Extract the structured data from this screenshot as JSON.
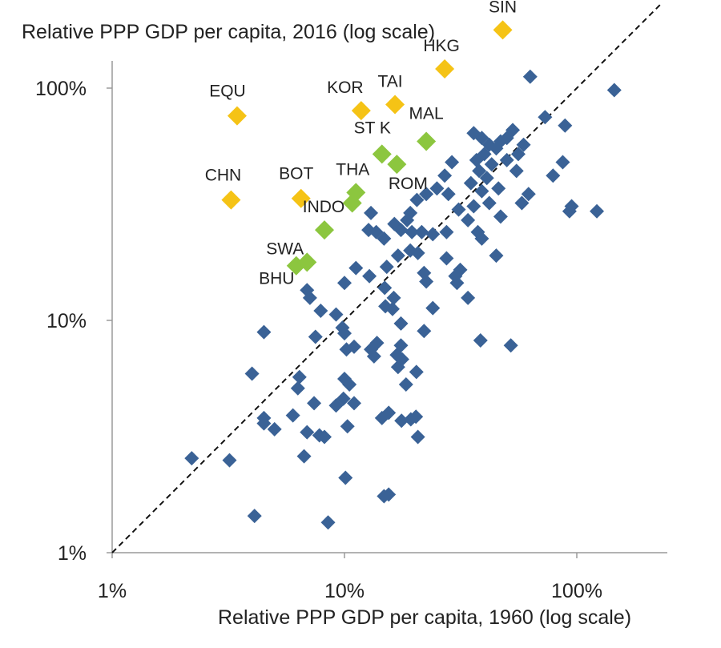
{
  "chart_data": {
    "type": "scatter",
    "ylabel": "Relative PPP GDP per capita, 2016 (log scale)",
    "xlabel": "Relative PPP GDP per capita, 1960 (log scale)",
    "x_scale": "log",
    "y_scale": "log",
    "xlim": [
      1,
      230
    ],
    "ylim": [
      1,
      230
    ],
    "x_ticks": [
      {
        "value": 1,
        "label": "1%"
      },
      {
        "value": 10,
        "label": "10%"
      },
      {
        "value": 100,
        "label": "100%"
      }
    ],
    "y_ticks": [
      {
        "value": 1,
        "label": "1%"
      },
      {
        "value": 10,
        "label": "10%"
      },
      {
        "value": 100,
        "label": "100%"
      }
    ],
    "grid": false,
    "reference_line": {
      "style": "dashed",
      "from": [
        1,
        1
      ],
      "to": [
        230,
        230
      ]
    },
    "colors": {
      "blue": "#3a6296",
      "yellow": "#f5c316",
      "green": "#8cc63f"
    },
    "series": [
      {
        "color": "yellow",
        "points": [
          {
            "label": "SIN",
            "x": 48,
            "y": 178
          },
          {
            "label": "HKG",
            "x": 27,
            "y": 121
          },
          {
            "label": "TAI",
            "x": 16.5,
            "y": 85
          },
          {
            "label": "KOR",
            "x": 11.8,
            "y": 80
          },
          {
            "label": "EQU",
            "x": 3.45,
            "y": 76
          },
          {
            "label": "CHN",
            "x": 3.25,
            "y": 33
          },
          {
            "label": "BOT",
            "x": 6.5,
            "y": 33.5
          }
        ]
      },
      {
        "color": "green",
        "points": [
          {
            "label": "MAL",
            "x": 22.5,
            "y": 59
          },
          {
            "label": "ST K",
            "x": 14.5,
            "y": 52
          },
          {
            "label": "ROM",
            "x": 16.8,
            "y": 47
          },
          {
            "label": "THA",
            "x": 11.2,
            "y": 35.5
          },
          {
            "label": "",
            "x": 10.8,
            "y": 32
          },
          {
            "label": "INDO",
            "x": 8.2,
            "y": 24.5
          },
          {
            "label": "SWA",
            "x": 6.2,
            "y": 17.2
          },
          {
            "label": "BHU",
            "x": 6.9,
            "y": 17.8
          }
        ]
      },
      {
        "color": "blue",
        "points": [
          {
            "x": 145,
            "y": 98
          },
          {
            "x": 63,
            "y": 112
          },
          {
            "x": 73,
            "y": 75
          },
          {
            "x": 89,
            "y": 69
          },
          {
            "x": 87,
            "y": 48
          },
          {
            "x": 79,
            "y": 42
          },
          {
            "x": 59,
            "y": 57
          },
          {
            "x": 56,
            "y": 52
          },
          {
            "x": 53,
            "y": 66
          },
          {
            "x": 50,
            "y": 61
          },
          {
            "x": 47,
            "y": 59
          },
          {
            "x": 45,
            "y": 55
          },
          {
            "x": 42,
            "y": 57
          },
          {
            "x": 40,
            "y": 52
          },
          {
            "x": 39,
            "y": 61
          },
          {
            "x": 36,
            "y": 64
          },
          {
            "x": 37,
            "y": 49
          },
          {
            "x": 43,
            "y": 47
          },
          {
            "x": 50,
            "y": 49
          },
          {
            "x": 55,
            "y": 44
          },
          {
            "x": 38,
            "y": 44
          },
          {
            "x": 41,
            "y": 41
          },
          {
            "x": 35,
            "y": 39
          },
          {
            "x": 39,
            "y": 36
          },
          {
            "x": 46,
            "y": 37
          },
          {
            "x": 62,
            "y": 35
          },
          {
            "x": 58,
            "y": 32
          },
          {
            "x": 42,
            "y": 32
          },
          {
            "x": 36,
            "y": 31
          },
          {
            "x": 31,
            "y": 30
          },
          {
            "x": 29,
            "y": 48
          },
          {
            "x": 27,
            "y": 42
          },
          {
            "x": 25,
            "y": 37
          },
          {
            "x": 28,
            "y": 35
          },
          {
            "x": 22.5,
            "y": 35
          },
          {
            "x": 20.5,
            "y": 33
          },
          {
            "x": 19.2,
            "y": 29
          },
          {
            "x": 18.6,
            "y": 27
          },
          {
            "x": 16.4,
            "y": 26
          },
          {
            "x": 17.5,
            "y": 24.5
          },
          {
            "x": 19.5,
            "y": 24
          },
          {
            "x": 21.5,
            "y": 24
          },
          {
            "x": 24,
            "y": 23.5
          },
          {
            "x": 27.5,
            "y": 24
          },
          {
            "x": 34,
            "y": 27
          },
          {
            "x": 37.5,
            "y": 24
          },
          {
            "x": 39,
            "y": 22.5
          },
          {
            "x": 47,
            "y": 28
          },
          {
            "x": 95,
            "y": 31
          },
          {
            "x": 93,
            "y": 29.5
          },
          {
            "x": 122,
            "y": 29.5
          },
          {
            "x": 13,
            "y": 29
          },
          {
            "x": 12.7,
            "y": 24.5
          },
          {
            "x": 13.7,
            "y": 24
          },
          {
            "x": 14.8,
            "y": 22.5
          },
          {
            "x": 15.2,
            "y": 17
          },
          {
            "x": 17,
            "y": 19
          },
          {
            "x": 19.2,
            "y": 20
          },
          {
            "x": 20.7,
            "y": 19.5
          },
          {
            "x": 22,
            "y": 16
          },
          {
            "x": 22.5,
            "y": 14.7
          },
          {
            "x": 27.5,
            "y": 18.5
          },
          {
            "x": 30,
            "y": 15.5
          },
          {
            "x": 31.5,
            "y": 16.5
          },
          {
            "x": 30.5,
            "y": 14.5
          },
          {
            "x": 34,
            "y": 12.5
          },
          {
            "x": 24,
            "y": 11.3
          },
          {
            "x": 22,
            "y": 9
          },
          {
            "x": 17.5,
            "y": 9.7
          },
          {
            "x": 17.5,
            "y": 7.8
          },
          {
            "x": 16.3,
            "y": 12.5
          },
          {
            "x": 16.1,
            "y": 11.2
          },
          {
            "x": 15,
            "y": 11.5
          },
          {
            "x": 14.9,
            "y": 13.8
          },
          {
            "x": 12.8,
            "y": 15.5
          },
          {
            "x": 11.2,
            "y": 16.8
          },
          {
            "x": 10,
            "y": 14.5
          },
          {
            "x": 9.8,
            "y": 9.3
          },
          {
            "x": 9.2,
            "y": 10.6
          },
          {
            "x": 7.9,
            "y": 11
          },
          {
            "x": 6.9,
            "y": 13.5
          },
          {
            "x": 7.1,
            "y": 12.5
          },
          {
            "x": 7.5,
            "y": 8.5
          },
          {
            "x": 10,
            "y": 8.8
          },
          {
            "x": 10.2,
            "y": 7.5
          },
          {
            "x": 11,
            "y": 7.7
          },
          {
            "x": 13,
            "y": 7.5
          },
          {
            "x": 13.4,
            "y": 7
          },
          {
            "x": 13.8,
            "y": 8
          },
          {
            "x": 16.8,
            "y": 7.1
          },
          {
            "x": 17,
            "y": 6.3
          },
          {
            "x": 17.7,
            "y": 6.8
          },
          {
            "x": 18.4,
            "y": 5.3
          },
          {
            "x": 20.4,
            "y": 6
          },
          {
            "x": 10.5,
            "y": 5.3
          },
          {
            "x": 10,
            "y": 5.6
          },
          {
            "x": 9.9,
            "y": 4.6
          },
          {
            "x": 11,
            "y": 4.4
          },
          {
            "x": 9.2,
            "y": 4.3
          },
          {
            "x": 7.4,
            "y": 4.4
          },
          {
            "x": 6.4,
            "y": 5.7
          },
          {
            "x": 6.3,
            "y": 5.1
          },
          {
            "x": 4,
            "y": 5.9
          },
          {
            "x": 4.5,
            "y": 3.8
          },
          {
            "x": 4.5,
            "y": 3.6
          },
          {
            "x": 5,
            "y": 3.4
          },
          {
            "x": 6,
            "y": 3.9
          },
          {
            "x": 6.9,
            "y": 3.3
          },
          {
            "x": 7.8,
            "y": 3.2
          },
          {
            "x": 8.2,
            "y": 3.15
          },
          {
            "x": 10.3,
            "y": 3.5
          },
          {
            "x": 6.7,
            "y": 2.6
          },
          {
            "x": 4.5,
            "y": 8.9
          },
          {
            "x": 3.2,
            "y": 2.5
          },
          {
            "x": 2.2,
            "y": 2.55
          },
          {
            "x": 4.1,
            "y": 1.44
          },
          {
            "x": 8.5,
            "y": 1.35
          },
          {
            "x": 10.1,
            "y": 2.1
          },
          {
            "x": 14.8,
            "y": 1.75
          },
          {
            "x": 15.5,
            "y": 1.78
          },
          {
            "x": 14.5,
            "y": 3.8
          },
          {
            "x": 15.5,
            "y": 4
          },
          {
            "x": 17.6,
            "y": 3.7
          },
          {
            "x": 19.3,
            "y": 3.75
          },
          {
            "x": 20.3,
            "y": 3.85
          },
          {
            "x": 20.7,
            "y": 3.15
          },
          {
            "x": 38.5,
            "y": 8.2
          },
          {
            "x": 45,
            "y": 19
          },
          {
            "x": 52,
            "y": 7.8
          }
        ]
      }
    ]
  }
}
